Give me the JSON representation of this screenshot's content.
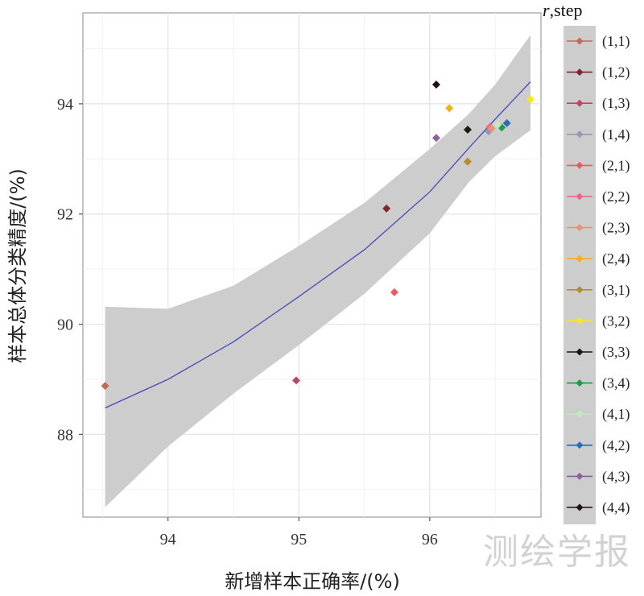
{
  "chart_data": {
    "type": "scatter",
    "xlabel": "新增样本正确率/(%)",
    "ylabel": "样本总体分类精度/(%)",
    "xlim": [
      93.35,
      96.85
    ],
    "ylim": [
      86.5,
      95.65
    ],
    "x_ticks": [
      94,
      95,
      96
    ],
    "y_ticks": [
      88,
      90,
      92,
      94
    ],
    "grid": true,
    "legend_position": "right",
    "legend_title": {
      "italic": "r",
      "rest": ",step"
    },
    "series": [
      {
        "name": "(1,1)",
        "color": "#c06a58",
        "x": 93.52,
        "y": 88.88
      },
      {
        "name": "(1,2)",
        "color": "#7a2a2a",
        "x": 95.67,
        "y": 92.1
      },
      {
        "name": "(1,3)",
        "color": "#b84a66",
        "x": 94.98,
        "y": 88.98
      },
      {
        "name": "(1,4)",
        "color": "#9a96b4",
        "x": 96.45,
        "y": 93.5
      },
      {
        "name": "(2,1)",
        "color": "#ee5a64",
        "x": 95.73,
        "y": 90.58
      },
      {
        "name": "(2,2)",
        "color": "#ee6486",
        "x": 96.46,
        "y": 93.58
      },
      {
        "name": "(2,3)",
        "color": "#f08e70",
        "x": 96.47,
        "y": 93.55
      },
      {
        "name": "(2,4)",
        "color": "#f0b21a",
        "x": 96.15,
        "y": 93.92
      },
      {
        "name": "(3,1)",
        "color": "#b88a2e",
        "x": 96.29,
        "y": 92.95
      },
      {
        "name": "(3,2)",
        "color": "#f6ea1a",
        "x": 96.77,
        "y": 94.08
      },
      {
        "name": "(3,3)",
        "color": "#1a1a10",
        "x": 96.29,
        "y": 93.53
      },
      {
        "name": "(3,4)",
        "color": "#1e9a48",
        "x": 96.55,
        "y": 93.57
      },
      {
        "name": "(4,1)",
        "color": "#c4e8c0",
        "x": 96.52,
        "y": 93.62
      },
      {
        "name": "(4,2)",
        "color": "#2a6cb4",
        "x": 96.59,
        "y": 93.65
      },
      {
        "name": "(4,3)",
        "color": "#8a62a0",
        "x": 96.05,
        "y": 93.38
      },
      {
        "name": "(4,4)",
        "color": "#241018",
        "x": 96.05,
        "y": 94.35
      }
    ],
    "smooth": {
      "color": "#4a4ab8",
      "band_color": "#cdcdcd",
      "x": [
        93.52,
        94.0,
        94.5,
        95.0,
        95.5,
        96.0,
        96.3,
        96.5,
        96.77
      ],
      "y": [
        88.48,
        89.0,
        89.68,
        90.5,
        91.35,
        92.4,
        93.2,
        93.72,
        94.4
      ],
      "lower": [
        86.68,
        87.78,
        88.74,
        89.62,
        90.55,
        91.65,
        92.58,
        93.05,
        93.52
      ],
      "upper": [
        90.32,
        90.28,
        90.7,
        91.42,
        92.2,
        93.18,
        93.82,
        94.35,
        95.25
      ]
    }
  },
  "watermark": "测绘学报"
}
